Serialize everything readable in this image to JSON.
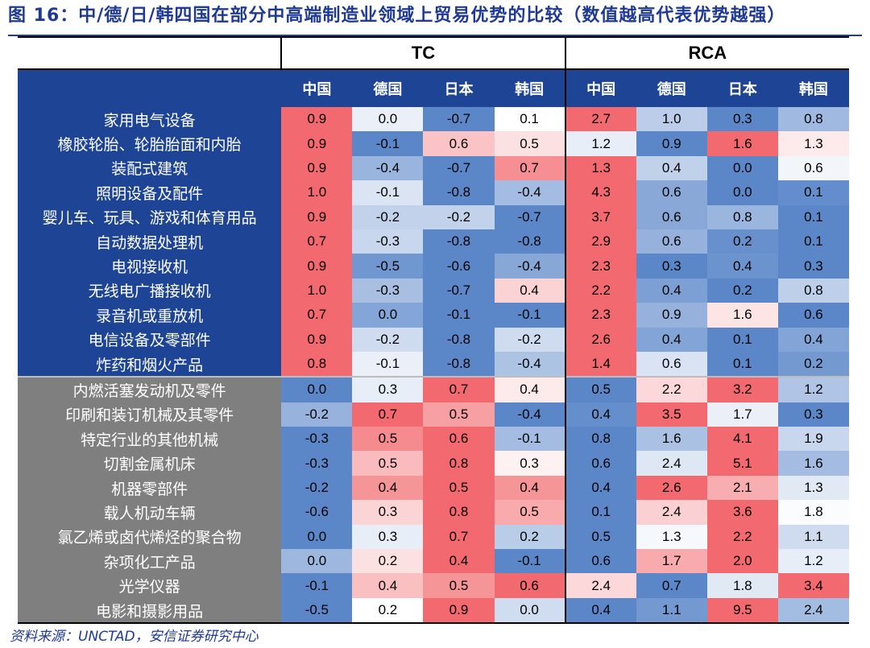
{
  "title": "图 16：中/德/日/韩四国在部分中高端制造业领域上贸易优势的比较（数值越高代表优势越强）",
  "groups": [
    "TC",
    "RCA"
  ],
  "countries": [
    "中国",
    "德国",
    "日本",
    "韩国"
  ],
  "rows": [
    {
      "label": "家用电气设备",
      "cat": "blue",
      "tc": [
        "0.9",
        "0.0",
        "-0.7",
        "0.1"
      ],
      "rca": [
        "2.7",
        "1.0",
        "0.3",
        "0.8"
      ]
    },
    {
      "label": "橡胶轮胎、轮胎胎面和内胎",
      "cat": "blue",
      "tc": [
        "0.9",
        "-0.1",
        "0.6",
        "0.5"
      ],
      "rca": [
        "1.2",
        "0.9",
        "1.6",
        "1.3"
      ]
    },
    {
      "label": "装配式建筑",
      "cat": "blue",
      "tc": [
        "0.9",
        "-0.4",
        "-0.7",
        "0.7"
      ],
      "rca": [
        "1.3",
        "0.4",
        "0.0",
        "0.6"
      ]
    },
    {
      "label": "照明设备及配件",
      "cat": "blue",
      "tc": [
        "1.0",
        "-0.1",
        "-0.8",
        "-0.4"
      ],
      "rca": [
        "4.3",
        "0.6",
        "0.0",
        "0.1"
      ]
    },
    {
      "label": "婴儿车、玩具、游戏和体育用品",
      "cat": "blue",
      "tc": [
        "0.9",
        "-0.2",
        "-0.2",
        "-0.7"
      ],
      "rca": [
        "3.7",
        "0.6",
        "0.8",
        "0.1"
      ]
    },
    {
      "label": "自动数据处理机",
      "cat": "blue",
      "tc": [
        "0.7",
        "-0.3",
        "-0.8",
        "-0.8"
      ],
      "rca": [
        "2.9",
        "0.6",
        "0.2",
        "0.1"
      ]
    },
    {
      "label": "电视接收机",
      "cat": "blue",
      "tc": [
        "0.9",
        "-0.5",
        "-0.6",
        "-0.4"
      ],
      "rca": [
        "2.3",
        "0.3",
        "0.4",
        "0.3"
      ]
    },
    {
      "label": "无线电广播接收机",
      "cat": "blue",
      "tc": [
        "1.0",
        "-0.3",
        "-0.7",
        "0.4"
      ],
      "rca": [
        "2.2",
        "0.4",
        "0.2",
        "0.8"
      ]
    },
    {
      "label": "录音机或重放机",
      "cat": "blue",
      "tc": [
        "0.7",
        "0.0",
        "-0.1",
        "-0.1"
      ],
      "rca": [
        "2.3",
        "0.9",
        "1.6",
        "0.6"
      ]
    },
    {
      "label": "电信设备及零部件",
      "cat": "blue",
      "tc": [
        "0.9",
        "-0.2",
        "-0.8",
        "-0.2"
      ],
      "rca": [
        "2.6",
        "0.4",
        "0.1",
        "0.4"
      ]
    },
    {
      "label": "炸药和烟火产品",
      "cat": "blue",
      "tc": [
        "0.8",
        "-0.1",
        "-0.8",
        "-0.4"
      ],
      "rca": [
        "1.4",
        "0.6",
        "0.1",
        "0.2"
      ]
    },
    {
      "label": "内燃活塞发动机及零件",
      "cat": "gray",
      "tc": [
        "0.0",
        "0.3",
        "0.7",
        "0.4"
      ],
      "rca": [
        "0.5",
        "2.2",
        "3.2",
        "1.2"
      ]
    },
    {
      "label": "印刷和装订机械及其零件",
      "cat": "gray",
      "tc": [
        "-0.2",
        "0.7",
        "0.5",
        "-0.4"
      ],
      "rca": [
        "0.4",
        "3.5",
        "1.7",
        "0.3"
      ]
    },
    {
      "label": "特定行业的其他机械",
      "cat": "gray",
      "tc": [
        "-0.3",
        "0.5",
        "0.6",
        "-0.1"
      ],
      "rca": [
        "0.8",
        "1.6",
        "4.1",
        "1.9"
      ]
    },
    {
      "label": "切割金属机床",
      "cat": "gray",
      "tc": [
        "-0.3",
        "0.5",
        "0.8",
        "0.3"
      ],
      "rca": [
        "0.6",
        "2.4",
        "5.1",
        "1.6"
      ]
    },
    {
      "label": "机器零部件",
      "cat": "gray",
      "tc": [
        "-0.2",
        "0.4",
        "0.5",
        "0.4"
      ],
      "rca": [
        "0.4",
        "2.6",
        "2.1",
        "1.3"
      ]
    },
    {
      "label": "载人机动车辆",
      "cat": "gray",
      "tc": [
        "-0.6",
        "0.3",
        "0.8",
        "0.5"
      ],
      "rca": [
        "0.1",
        "2.4",
        "3.6",
        "1.8"
      ]
    },
    {
      "label": "氯乙烯或卤代烯烃的聚合物",
      "cat": "gray",
      "tc": [
        "0.0",
        "0.3",
        "0.7",
        "0.2"
      ],
      "rca": [
        "0.5",
        "1.3",
        "2.2",
        "1.1"
      ]
    },
    {
      "label": "杂项化工产品",
      "cat": "gray",
      "tc": [
        "0.0",
        "0.2",
        "0.4",
        "-0.1"
      ],
      "rca": [
        "0.6",
        "1.7",
        "2.0",
        "1.2"
      ]
    },
    {
      "label": "光学仪器",
      "cat": "gray",
      "tc": [
        "-0.1",
        "0.4",
        "0.5",
        "0.6"
      ],
      "rca": [
        "2.4",
        "0.7",
        "1.8",
        "3.4"
      ]
    },
    {
      "label": "电影和摄影用品",
      "cat": "gray",
      "tc": [
        "-0.5",
        "0.2",
        "0.9",
        "0.0"
      ],
      "rca": [
        "0.4",
        "1.1",
        "9.5",
        "2.4"
      ]
    }
  ],
  "source": "资料来源：UNCTAD，安信证券研究中心",
  "colors": {
    "header_blue": "#1e4496",
    "label_gray": "#7f7f7f",
    "scale_low": "#5b87c9",
    "scale_mid": "#ffffff",
    "scale_high": "#f26a6f"
  }
}
